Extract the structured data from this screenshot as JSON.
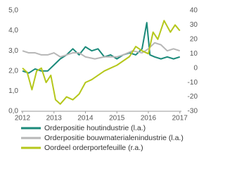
{
  "chart_data": {
    "type": "line",
    "xlim": [
      2012,
      2017.05
    ],
    "xticks": [
      2012,
      2013,
      2014,
      2015,
      2016,
      2017
    ],
    "ylim": [
      0,
      5
    ],
    "yticks": [
      {
        "value": 0,
        "label": "0,0"
      },
      {
        "value": 1,
        "label": "1,0"
      },
      {
        "value": 2,
        "label": "2,0"
      },
      {
        "value": 3,
        "label": "3,0"
      },
      {
        "value": 4,
        "label": "4,0"
      },
      {
        "value": 5,
        "label": "5,0"
      }
    ],
    "y2lim": [
      -30,
      40
    ],
    "y2ticks": [
      -30,
      -20,
      -10,
      0,
      10,
      20,
      30,
      40
    ],
    "series": [
      {
        "name": "Orderpositie houtindustrie (l.a.)",
        "color": "#1b8a7a",
        "x": [
          2012,
          2012.2,
          2012.4,
          2012.6,
          2012.8,
          2013,
          2013.2,
          2013.4,
          2013.6,
          2013.8,
          2014,
          2014.2,
          2014.4,
          2014.6,
          2014.8,
          2015,
          2015.2,
          2015.4,
          2015.6,
          2015.8,
          2015.95,
          2016.05,
          2016.2,
          2016.4,
          2016.6,
          2016.8,
          2017
        ],
        "values": [
          2.0,
          1.9,
          2.1,
          2.0,
          2.0,
          2.3,
          2.6,
          2.8,
          3.1,
          2.8,
          3.2,
          3.0,
          3.1,
          2.7,
          2.8,
          2.6,
          2.8,
          2.9,
          2.8,
          3.1,
          4.4,
          2.8,
          2.7,
          2.6,
          2.7,
          2.6,
          2.7
        ]
      },
      {
        "name": "Orderpositie bouwmaterialenindustrie (l.a.)",
        "color": "#b7b7b7",
        "x": [
          2012,
          2012.2,
          2012.4,
          2012.6,
          2012.8,
          2013,
          2013.2,
          2013.4,
          2013.6,
          2013.8,
          2014,
          2014.3,
          2014.6,
          2014.8,
          2015,
          2015.2,
          2015.5,
          2015.8,
          2016,
          2016.2,
          2016.4,
          2016.6,
          2016.8,
          2017
        ],
        "values": [
          3.0,
          2.9,
          2.9,
          2.8,
          2.8,
          2.9,
          2.7,
          2.8,
          2.9,
          2.9,
          2.7,
          2.6,
          2.7,
          2.7,
          2.7,
          2.8,
          3.0,
          2.9,
          3.1,
          3.4,
          3.3,
          3.0,
          3.1,
          3.0
        ]
      },
      {
        "name": "Oordeel orderportefeuille (r.a.)",
        "color": "#b5c71b",
        "axis": "y2",
        "x": [
          2012,
          2012.15,
          2012.3,
          2012.45,
          2012.6,
          2012.75,
          2012.9,
          2013.05,
          2013.2,
          2013.4,
          2013.6,
          2013.8,
          2014,
          2014.2,
          2014.4,
          2014.6,
          2014.8,
          2015,
          2015.2,
          2015.4,
          2015.6,
          2015.8,
          2016,
          2016.15,
          2016.3,
          2016.5,
          2016.7,
          2016.85,
          2017
        ],
        "values": [
          0,
          -3,
          -15,
          -2,
          0,
          -10,
          -5,
          -22,
          -25,
          -20,
          -22,
          -18,
          -10,
          -8,
          -5,
          -2,
          0,
          2,
          5,
          8,
          15,
          12,
          10,
          25,
          20,
          33,
          25,
          30,
          26
        ]
      }
    ]
  }
}
